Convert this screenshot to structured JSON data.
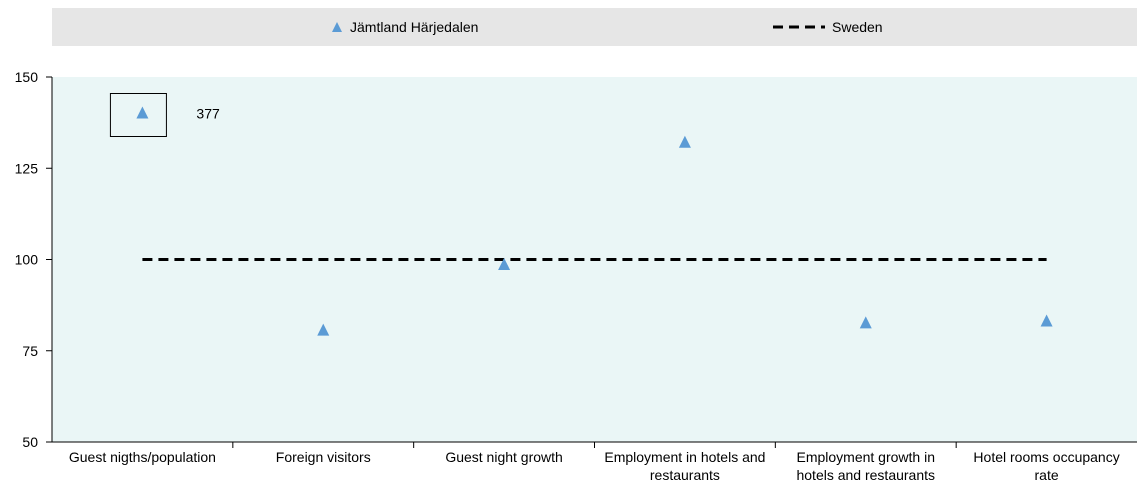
{
  "chart_data": {
    "type": "scatter",
    "categories": [
      "Guest nigths/population",
      "Foreign visitors",
      "Guest night growth",
      "Employment in hotels and restaurants",
      "Employment growth in hotels and restaurants",
      "Hotel rooms occupancy rate"
    ],
    "category_lines": [
      [
        "Guest nigths/population"
      ],
      [
        "Foreign visitors"
      ],
      [
        "Guest night growth"
      ],
      [
        "Employment in hotels and",
        "restaurants"
      ],
      [
        "Employment growth in",
        "hotels and restaurants"
      ],
      [
        "Hotel rooms occupancy",
        "rate"
      ]
    ],
    "series": [
      {
        "name": "Jämtland Härjedalen",
        "marker": "triangle",
        "color": "#5b9bd5",
        "values": [
          140,
          80.5,
          98.5,
          132,
          82.5,
          83
        ]
      },
      {
        "name": "Sweden",
        "style": "dashed-line",
        "color": "#000000",
        "values": [
          100,
          100,
          100,
          100,
          100,
          100
        ]
      }
    ],
    "annotation": {
      "category_index": 0,
      "text": "377",
      "note": "value beyond axis, marker boxed"
    },
    "ylim": [
      50,
      150
    ],
    "yticks": [
      50,
      75,
      100,
      125,
      150
    ],
    "xlabel": "",
    "ylabel": "",
    "plot_background": "#eaf6f6",
    "legend_position": "top"
  },
  "legend": {
    "series1_label": "Jämtland Härjedalen",
    "series2_label": "Sweden"
  }
}
